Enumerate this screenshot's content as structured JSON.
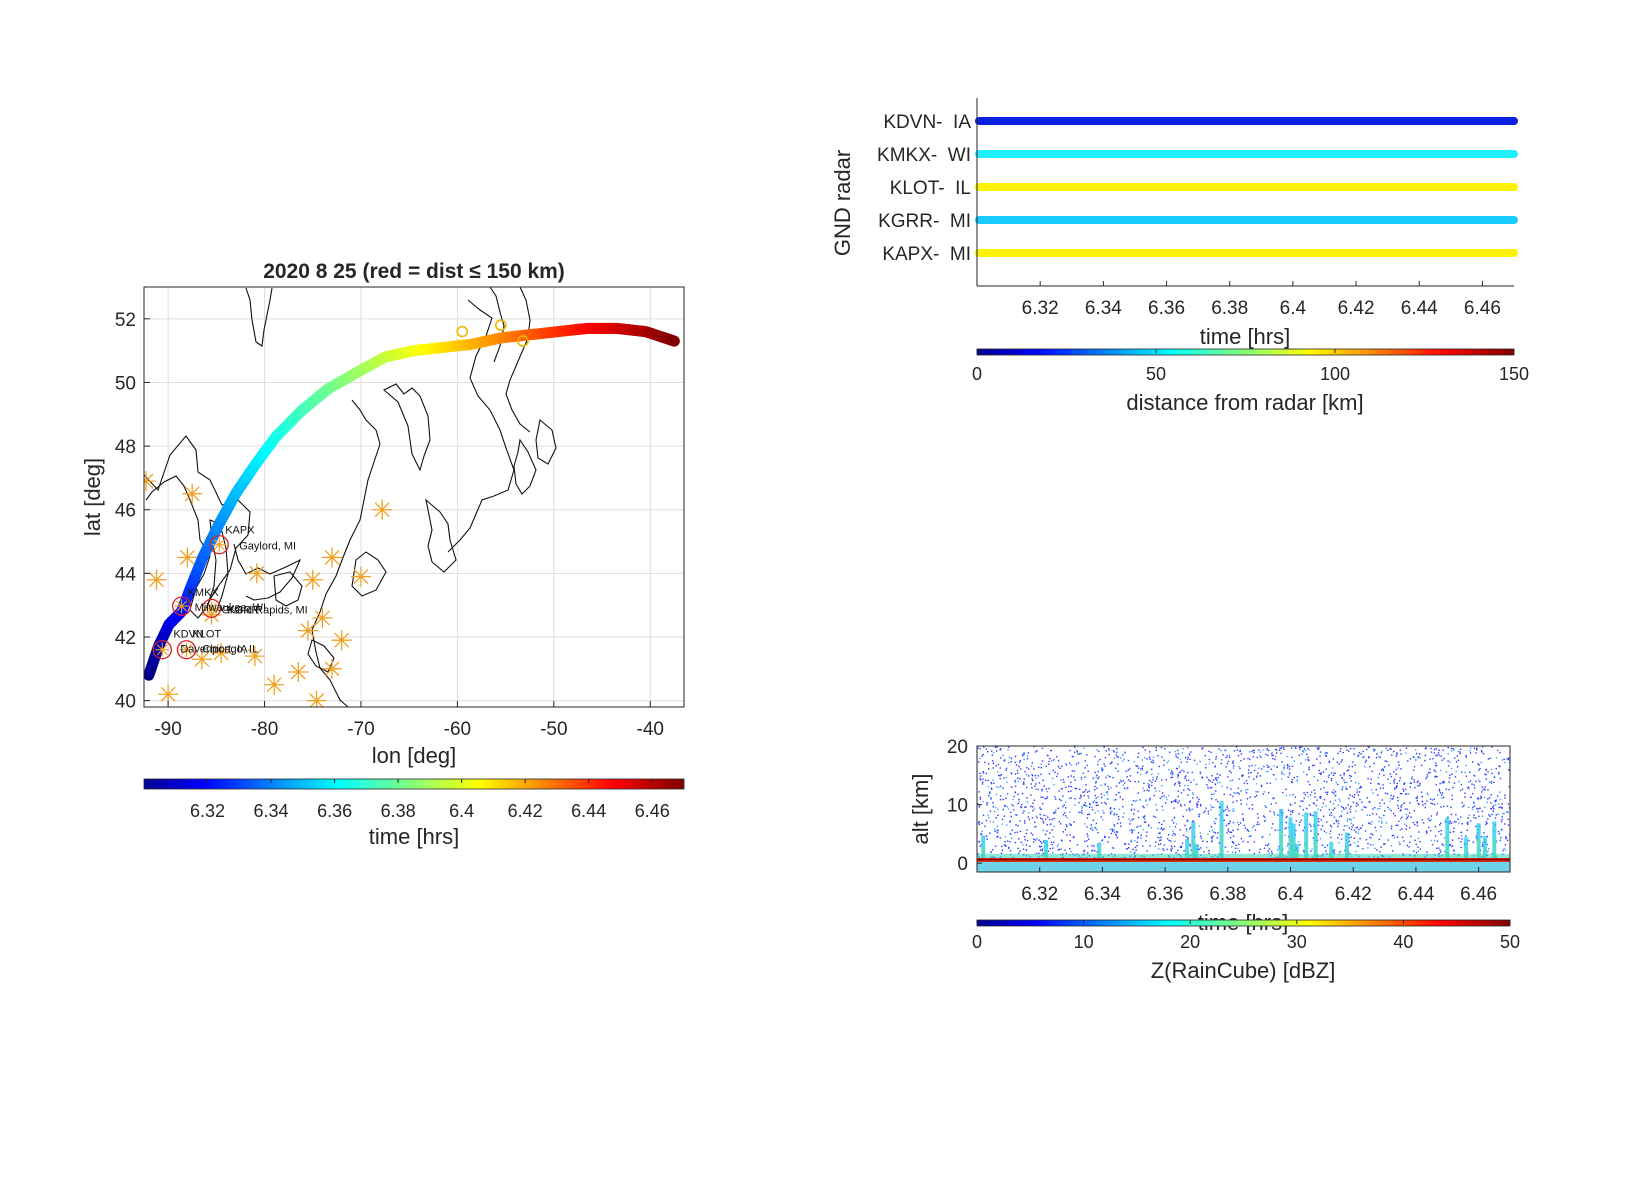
{
  "chart_data": [
    {
      "id": "map",
      "type": "scatter",
      "title": "2020     8    25  (red = dist ≤ 150 km)",
      "xlabel": "lon  [deg]",
      "ylabel": "lat  [deg]",
      "xlim": [
        -92.5,
        -36.5
      ],
      "ylim": [
        39.8,
        53
      ],
      "xticks": [
        -90,
        -80,
        -70,
        -60,
        -50,
        -40
      ],
      "yticks": [
        40,
        42,
        44,
        46,
        48,
        50,
        52
      ],
      "grid": true,
      "colorbar": {
        "label": "time  [hrs]",
        "range": [
          6.3,
          6.47
        ],
        "ticks": [
          "6.32",
          "6.34",
          "6.36",
          "6.38",
          "6.4",
          "6.42",
          "6.44",
          "6.46"
        ],
        "colormap": "jet"
      },
      "track": {
        "time_range": [
          6.3,
          6.47
        ],
        "points": [
          [
            -92.0,
            40.8
          ],
          [
            -91.0,
            41.7
          ],
          [
            -89.9,
            42.4
          ],
          [
            -88.6,
            42.8
          ],
          [
            -87.6,
            43.6
          ],
          [
            -86.4,
            44.5
          ],
          [
            -84.8,
            45.5
          ],
          [
            -83.0,
            46.5
          ],
          [
            -81.0,
            47.4
          ],
          [
            -78.8,
            48.3
          ],
          [
            -76.2,
            49.1
          ],
          [
            -73.4,
            49.8
          ],
          [
            -70.5,
            50.3
          ],
          [
            -67.5,
            50.8
          ],
          [
            -64.5,
            51.0
          ],
          [
            -61.5,
            51.1
          ],
          [
            -58.5,
            51.2
          ],
          [
            -55.5,
            51.4
          ],
          [
            -52.5,
            51.5
          ],
          [
            -49.5,
            51.6
          ],
          [
            -46.5,
            51.7
          ],
          [
            -43.5,
            51.7
          ],
          [
            -40.5,
            51.6
          ],
          [
            -37.5,
            51.3
          ]
        ]
      },
      "near_markers": [
        [
          -59.5,
          51.6
        ],
        [
          -53.2,
          51.3
        ],
        [
          -55.5,
          51.8
        ]
      ],
      "radar_sites": [
        {
          "id": "KAPX",
          "place": "Gaylord, MI",
          "lon": -84.7,
          "lat": 44.9
        },
        {
          "id": "KMKX",
          "place": "Milwaukee, WI",
          "lon": -88.6,
          "lat": 42.97
        },
        {
          "id": "KGRR",
          "place": "Grand Rapids, MI",
          "lon": -85.5,
          "lat": 42.9
        },
        {
          "id": "KDVN",
          "place": "Davenport, IA",
          "lon": -90.6,
          "lat": 41.6
        },
        {
          "id": "KLOT",
          "place": "Chicago, IL",
          "lon": -88.1,
          "lat": 41.6
        }
      ],
      "other_radars": [
        [
          -92.3,
          46.9
        ],
        [
          -87.5,
          46.5
        ],
        [
          -91.2,
          43.8
        ],
        [
          -88.0,
          44.5
        ],
        [
          -90.0,
          40.2
        ],
        [
          -85.5,
          42.7
        ],
        [
          -84.5,
          41.5
        ],
        [
          -81.0,
          41.4
        ],
        [
          -79.0,
          40.5
        ],
        [
          -76.5,
          40.9
        ],
        [
          -75.5,
          42.2
        ],
        [
          -75.0,
          43.8
        ],
        [
          -73.0,
          44.5
        ],
        [
          -74.0,
          42.6
        ],
        [
          -72.0,
          41.9
        ],
        [
          -70.0,
          43.9
        ],
        [
          -67.8,
          46.0
        ],
        [
          -74.6,
          40.0
        ],
        [
          -73.0,
          41.0
        ],
        [
          -86.5,
          41.3
        ],
        [
          -80.8,
          44.0
        ]
      ],
      "site_labels": [
        "KAPX",
        "Gaylord, MI",
        "KMKX",
        "KGRR",
        "Milwaukee, WI",
        "Grand Rapids, MI",
        "KDVN",
        "KLOT",
        "Davenport, IA",
        "Chicago, IL"
      ]
    },
    {
      "id": "radar_distance",
      "type": "line",
      "ylabel": "GND radar",
      "xlabel": "time [hrs]",
      "xlim": [
        6.3,
        6.47
      ],
      "xticks": [
        "6.32",
        "6.34",
        "6.36",
        "6.38",
        "6.4",
        "6.42",
        "6.44",
        "6.46"
      ],
      "categories": [
        "KDVN-  IA",
        "KMKX-  WI",
        "KLOT-  IL",
        "KGRR-  MI",
        "KAPX-  MI"
      ],
      "series": [
        {
          "name": "KDVN-  IA",
          "distance_km": 10,
          "color": "#0a1fe0"
        },
        {
          "name": "KMKX-  WI",
          "distance_km": 68,
          "color": "#1ff0ff"
        },
        {
          "name": "KLOT-  IL",
          "distance_km": 100,
          "color": "#fff200"
        },
        {
          "name": "KGRR-  MI",
          "distance_km": 62,
          "color": "#18ccff"
        },
        {
          "name": "KAPX-  MI",
          "distance_km": 100,
          "color": "#fff200"
        }
      ],
      "colorbar": {
        "label": "distance from radar [km]",
        "range": [
          0,
          150
        ],
        "ticks": [
          "0",
          "50",
          "100",
          "150"
        ],
        "colormap": "jet"
      }
    },
    {
      "id": "raincube",
      "type": "heatmap",
      "ylabel": "alt [km]",
      "xlabel": "time [hrs]",
      "xlim": [
        6.3,
        6.47
      ],
      "ylim": [
        -1.5,
        20
      ],
      "xticks": [
        "6.32",
        "6.34",
        "6.36",
        "6.38",
        "6.4",
        "6.42",
        "6.44",
        "6.46"
      ],
      "yticks": [
        "0",
        "10",
        "20"
      ],
      "surface_alt_km": 0.5,
      "convective_times": [
        6.302,
        6.322,
        6.339,
        6.367,
        6.369,
        6.37,
        6.378,
        6.397,
        6.4,
        6.401,
        6.402,
        6.405,
        6.408,
        6.413,
        6.418,
        6.45,
        6.456,
        6.46,
        6.462,
        6.465
      ],
      "colorbar": {
        "label": "Z(RainCube) [dBZ]",
        "range": [
          0,
          50
        ],
        "ticks": [
          "0",
          "10",
          "20",
          "30",
          "40",
          "50"
        ],
        "colormap": "jet"
      }
    }
  ]
}
